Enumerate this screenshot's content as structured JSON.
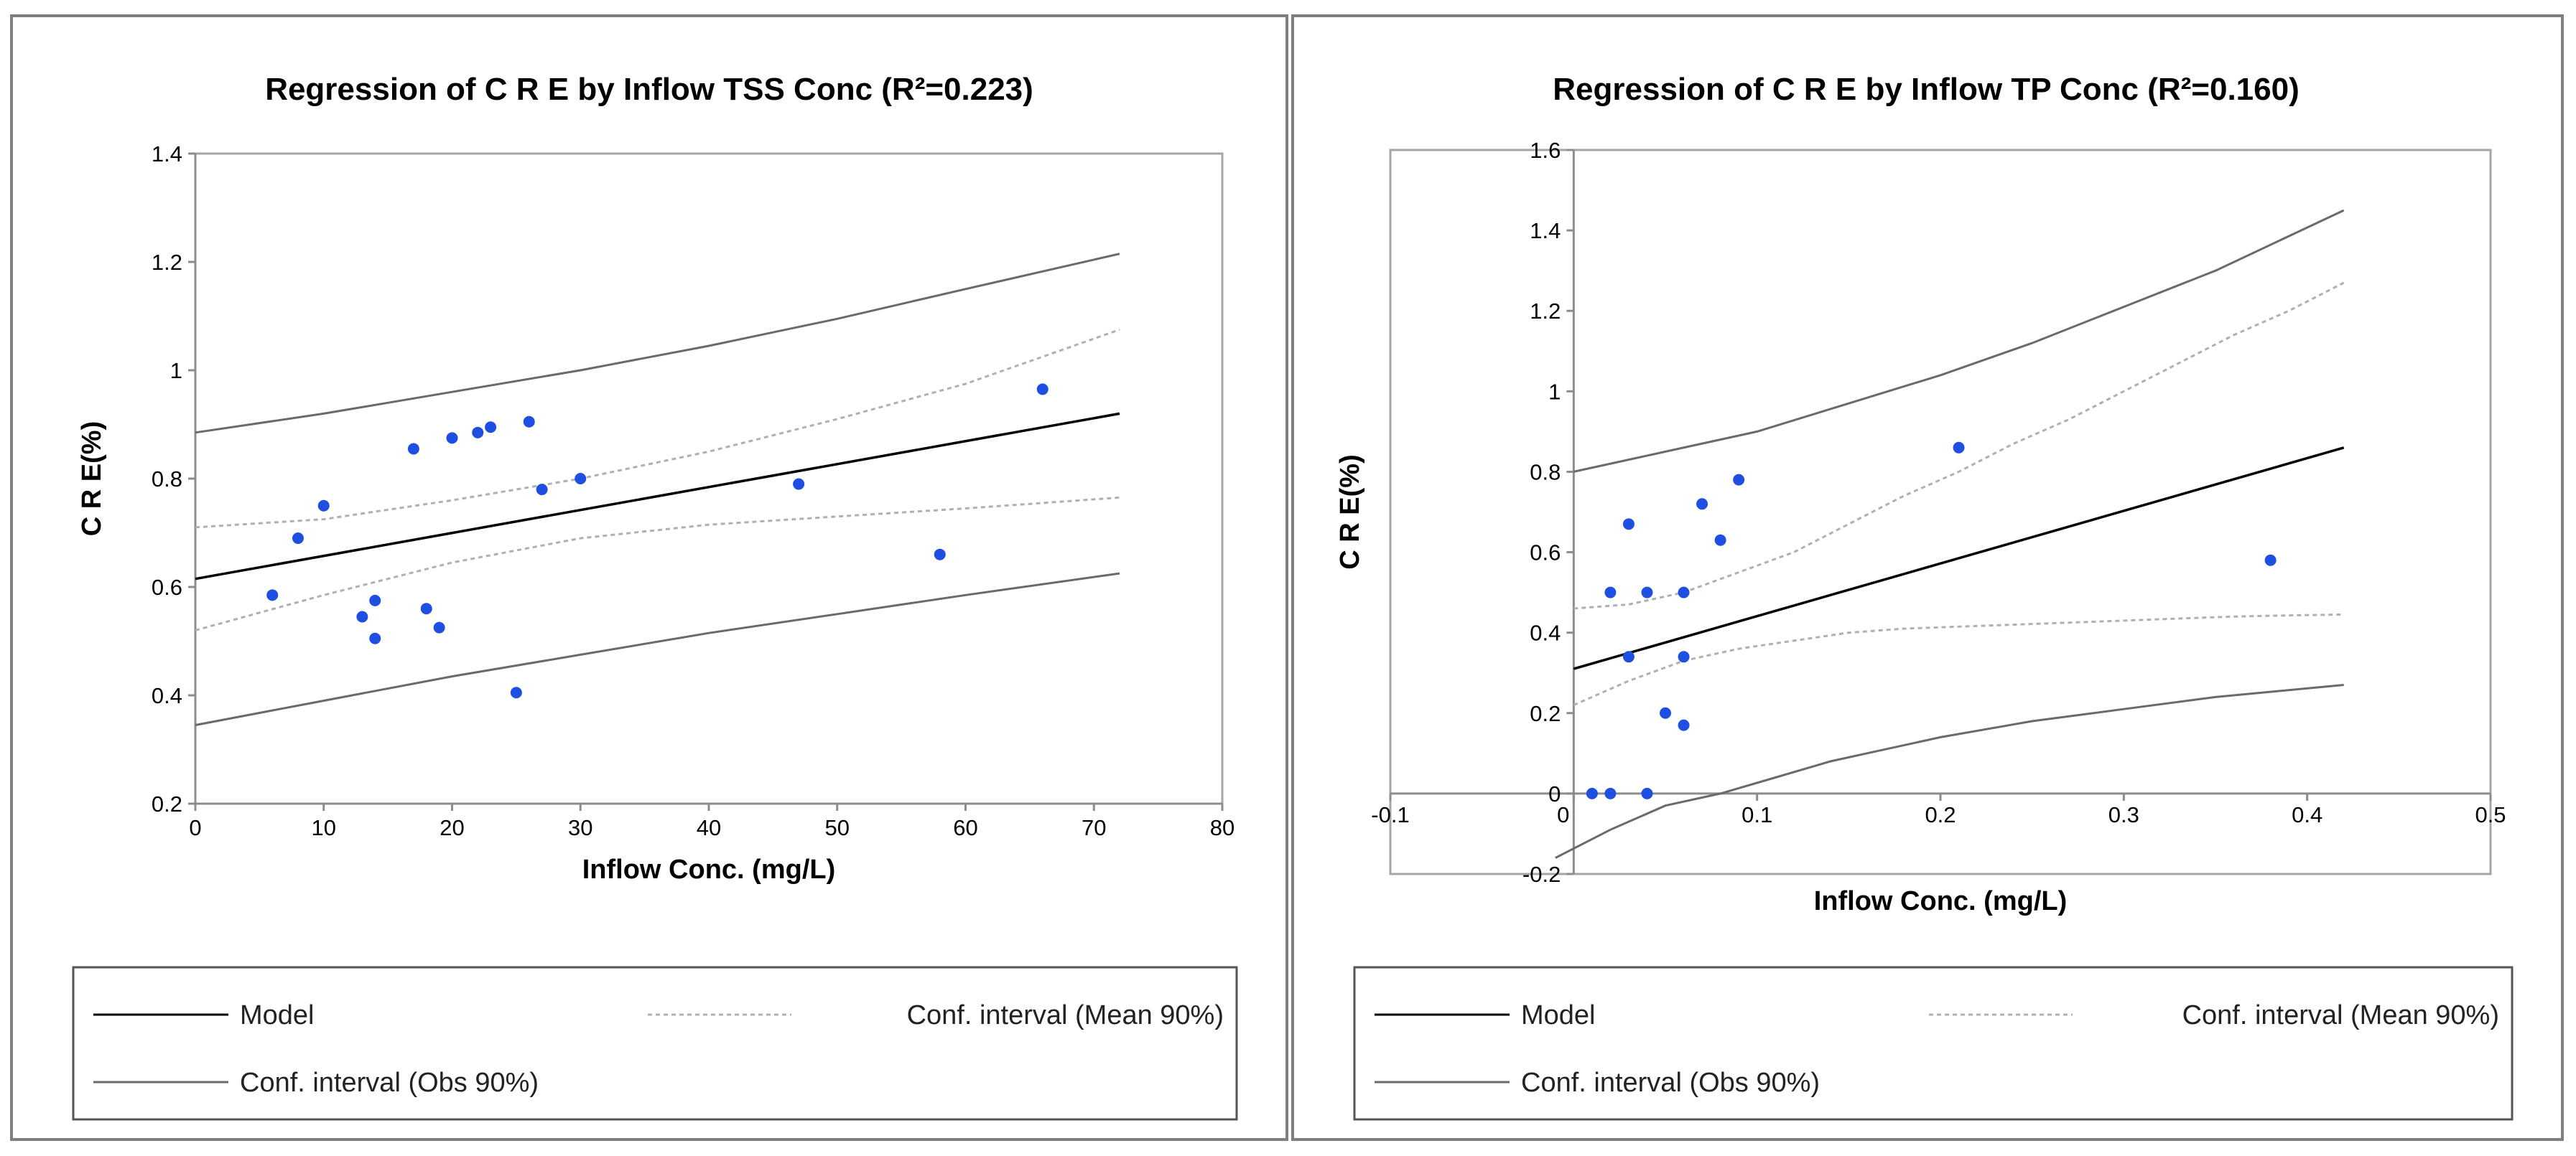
{
  "chart_data": [
    {
      "type": "scatter",
      "title": "Regression of C R E by Inflow TSS Conc (R²=0.223)",
      "xlabel": "Inflow  Conc. (mg/L)",
      "ylabel": "C R E(%)",
      "xlim": [
        0,
        80
      ],
      "ylim": [
        0.2,
        1.4
      ],
      "xticks": [
        0,
        10,
        20,
        30,
        40,
        50,
        60,
        70,
        80
      ],
      "yticks": [
        0.2,
        0.4,
        0.6,
        0.8,
        1,
        1.2,
        1.4
      ],
      "xtick_labels": [
        "0",
        "10",
        "20",
        "30",
        "40",
        "50",
        "60",
        "70",
        "80"
      ],
      "ytick_labels": [
        "0.2",
        "0.4",
        "0.6",
        "0.8",
        "1",
        "1.2",
        "1.4"
      ],
      "points": [
        {
          "x": 6,
          "y": 0.585
        },
        {
          "x": 8,
          "y": 0.69
        },
        {
          "x": 10,
          "y": 0.75
        },
        {
          "x": 13,
          "y": 0.545
        },
        {
          "x": 14,
          "y": 0.575
        },
        {
          "x": 14,
          "y": 0.505
        },
        {
          "x": 17,
          "y": 0.855
        },
        {
          "x": 18,
          "y": 0.56
        },
        {
          "x": 19,
          "y": 0.525
        },
        {
          "x": 20,
          "y": 0.875
        },
        {
          "x": 22,
          "y": 0.885
        },
        {
          "x": 23,
          "y": 0.895
        },
        {
          "x": 25,
          "y": 0.405
        },
        {
          "x": 26,
          "y": 0.905
        },
        {
          "x": 27,
          "y": 0.78
        },
        {
          "x": 30,
          "y": 0.8
        },
        {
          "x": 47,
          "y": 0.79
        },
        {
          "x": 58,
          "y": 0.66
        },
        {
          "x": 66,
          "y": 0.965
        }
      ],
      "model": {
        "x": [
          0,
          72
        ],
        "y": [
          0.615,
          0.92
        ]
      },
      "conf_mean_upper": {
        "x": [
          0,
          10,
          20,
          30,
          40,
          50,
          60,
          72
        ],
        "y": [
          0.71,
          0.725,
          0.76,
          0.8,
          0.85,
          0.91,
          0.975,
          1.075
        ]
      },
      "conf_mean_lower": {
        "x": [
          0,
          10,
          20,
          30,
          40,
          50,
          60,
          72
        ],
        "y": [
          0.52,
          0.585,
          0.645,
          0.69,
          0.715,
          0.73,
          0.745,
          0.765
        ]
      },
      "conf_obs_upper": {
        "x": [
          0,
          10,
          20,
          30,
          40,
          50,
          60,
          72
        ],
        "y": [
          0.885,
          0.92,
          0.96,
          1.0,
          1.045,
          1.095,
          1.15,
          1.215
        ]
      },
      "conf_obs_lower": {
        "x": [
          0,
          10,
          20,
          30,
          40,
          50,
          60,
          72
        ],
        "y": [
          0.345,
          0.39,
          0.435,
          0.475,
          0.515,
          0.55,
          0.585,
          0.625
        ]
      },
      "colors": {
        "points": "#1f4fe0",
        "model": "#000000",
        "conf_mean": "#b0b0b0",
        "conf_obs": "#6a6a6a"
      },
      "legend": [
        {
          "label": "Model",
          "style": "model"
        },
        {
          "label": "Conf. interval (Mean 90%)",
          "style": "conf_mean"
        },
        {
          "label": "Conf. interval (Obs 90%)",
          "style": "conf_obs"
        }
      ]
    },
    {
      "type": "scatter",
      "title": "Regression of C R E by Inflow TP Conc (R²=0.160)",
      "xlabel": "Inflow  Conc. (mg/L)",
      "ylabel": "C R E(%)",
      "xlim": [
        -0.1,
        0.5
      ],
      "ylim": [
        -0.2,
        1.6
      ],
      "xticks": [
        -0.1,
        0,
        0.1,
        0.2,
        0.3,
        0.4,
        0.5
      ],
      "yticks": [
        -0.2,
        0,
        0.2,
        0.4,
        0.6,
        0.8,
        1,
        1.2,
        1.4,
        1.6
      ],
      "xtick_labels": [
        "-0.1",
        "0",
        "0.1",
        "0.2",
        "0.3",
        "0.4",
        "0.5"
      ],
      "ytick_labels": [
        "-0.2",
        "0",
        "0.2",
        "0.4",
        "0.6",
        "0.8",
        "1",
        "1.2",
        "1.4",
        "1.6"
      ],
      "points": [
        {
          "x": 0.01,
          "y": 0.0
        },
        {
          "x": 0.02,
          "y": 0.0
        },
        {
          "x": 0.04,
          "y": 0.0
        },
        {
          "x": 0.02,
          "y": 0.5
        },
        {
          "x": 0.03,
          "y": 0.67
        },
        {
          "x": 0.03,
          "y": 0.34
        },
        {
          "x": 0.04,
          "y": 0.5
        },
        {
          "x": 0.05,
          "y": 0.2
        },
        {
          "x": 0.06,
          "y": 0.5
        },
        {
          "x": 0.06,
          "y": 0.34
        },
        {
          "x": 0.06,
          "y": 0.17
        },
        {
          "x": 0.07,
          "y": 0.72
        },
        {
          "x": 0.08,
          "y": 0.63
        },
        {
          "x": 0.09,
          "y": 0.78
        },
        {
          "x": 0.21,
          "y": 0.86
        },
        {
          "x": 0.38,
          "y": 0.58
        }
      ],
      "model": {
        "x": [
          0,
          0.42
        ],
        "y": [
          0.31,
          0.86
        ]
      },
      "conf_mean_upper": {
        "x": [
          0,
          0.03,
          0.06,
          0.09,
          0.12,
          0.15,
          0.18,
          0.21,
          0.24,
          0.27,
          0.3,
          0.33,
          0.36,
          0.39,
          0.42
        ],
        "y": [
          0.46,
          0.47,
          0.5,
          0.55,
          0.6,
          0.67,
          0.74,
          0.8,
          0.87,
          0.93,
          1.0,
          1.07,
          1.14,
          1.2,
          1.27
        ]
      },
      "conf_mean_lower": {
        "x": [
          0,
          0.03,
          0.06,
          0.09,
          0.12,
          0.15,
          0.18,
          0.21,
          0.24,
          0.27,
          0.3,
          0.33,
          0.36,
          0.39,
          0.42
        ],
        "y": [
          0.22,
          0.28,
          0.33,
          0.36,
          0.38,
          0.4,
          0.41,
          0.415,
          0.42,
          0.425,
          0.43,
          0.435,
          0.44,
          0.443,
          0.445
        ]
      },
      "conf_obs_upper": {
        "x": [
          0,
          0.05,
          0.1,
          0.15,
          0.2,
          0.25,
          0.3,
          0.35,
          0.42
        ],
        "y": [
          0.8,
          0.85,
          0.9,
          0.97,
          1.04,
          1.12,
          1.21,
          1.3,
          1.45
        ]
      },
      "conf_obs_lower": {
        "x": [
          -0.01,
          0.02,
          0.05,
          0.08,
          0.11,
          0.14,
          0.17,
          0.2,
          0.25,
          0.3,
          0.35,
          0.42
        ],
        "y": [
          -0.16,
          -0.09,
          -0.03,
          0.0,
          0.04,
          0.08,
          0.11,
          0.14,
          0.18,
          0.21,
          0.24,
          0.27
        ]
      },
      "colors": {
        "points": "#1f4fe0",
        "model": "#000000",
        "conf_mean": "#b0b0b0",
        "conf_obs": "#6a6a6a"
      },
      "legend": [
        {
          "label": "Model",
          "style": "model"
        },
        {
          "label": "Conf. interval (Mean 90%)",
          "style": "conf_mean"
        },
        {
          "label": "Conf. interval (Obs 90%)",
          "style": "conf_obs"
        }
      ]
    }
  ]
}
